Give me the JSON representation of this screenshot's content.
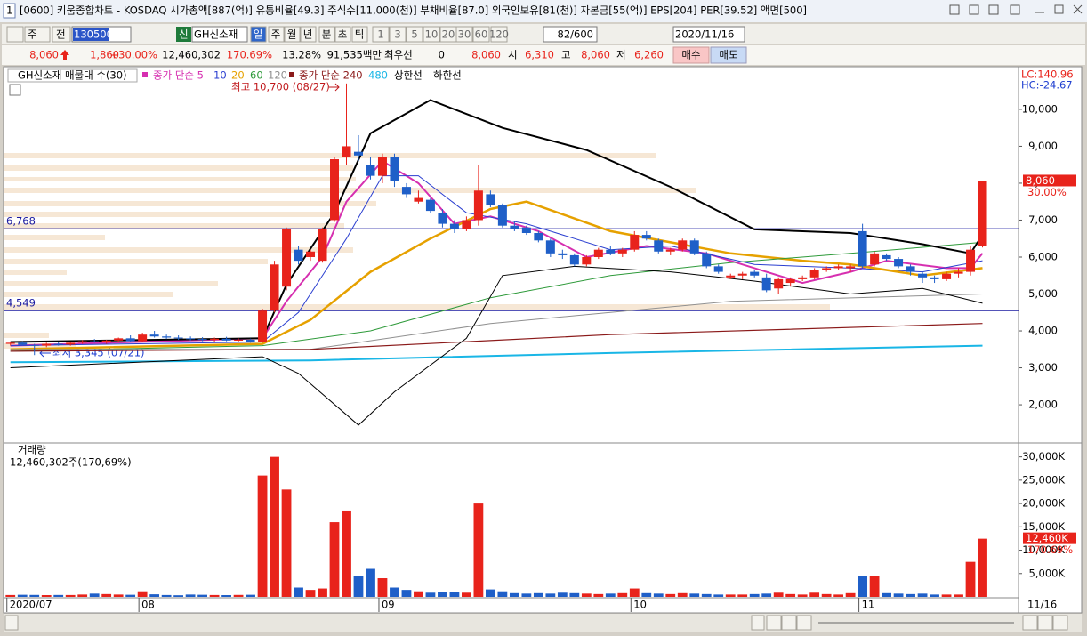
{
  "window": {
    "number": "1",
    "title": "[0600] 키움종합차트 - KOSDAQ 시가총액[887(억)] 유통비율[49.3] 주식수[11,000(천)] 부채비율[87.0] 외국인보유[81(천)] 자본금[55(억)] EPS[204] PER[39.52] 액면[500]"
  },
  "toolbar": {
    "market": "주",
    "mode": "전",
    "code": "130500",
    "badge": "신",
    "name": "GH신소재",
    "periods": [
      "일",
      "주",
      "월",
      "년",
      "분",
      "초",
      "틱"
    ],
    "intervals": [
      "1",
      "3",
      "5",
      "10",
      "20",
      "30",
      "60",
      "120"
    ],
    "count": "82/600",
    "date": "2020/11/16"
  },
  "quote": {
    "price": "8,060",
    "change": "1,860",
    "rate": "+30.00%",
    "volume": "12,460,302",
    "volume_rate": "170.69%",
    "turnover": "13.28%",
    "amount": "91,535백만",
    "best_label": "최우선",
    "best": "0",
    "best_price": "8,060",
    "open_label": "시",
    "open": "6,310",
    "high_label": "고",
    "high": "8,060",
    "low_label": "저",
    "low": "6,260",
    "buy": "매수",
    "sell": "매도"
  },
  "chart_data": [
    {
      "type": "candlestick",
      "title": "GH신소재 매물대 수(30)",
      "lc": "LC:140.96",
      "hc": "HC:-24.67",
      "up_color": "#e8231b",
      "down_color": "#1f5fc8",
      "xlim": [
        -0.5,
        84
      ],
      "xticks": [
        {
          "value": 0,
          "label": "2020/07"
        },
        {
          "value": 11,
          "label": "08"
        },
        {
          "value": 31,
          "label": "09"
        },
        {
          "value": 52,
          "label": "10"
        },
        {
          "value": 71,
          "label": "11"
        }
      ],
      "cursor_label": "11/16",
      "ylim": [
        990,
        11130
      ],
      "yticks": [
        {
          "value": 2000,
          "label": "2,000"
        },
        {
          "value": 3000,
          "label": "3,000"
        },
        {
          "value": 4000,
          "label": "4,000"
        },
        {
          "value": 5000,
          "label": "5,000"
        },
        {
          "value": 6000,
          "label": "6,000"
        },
        {
          "value": 7000,
          "label": "7,000"
        },
        {
          "value": 8000,
          "label": "8,000"
        },
        {
          "value": 9000,
          "label": "9,000"
        },
        {
          "value": 10000,
          "label": "10,000"
        }
      ],
      "open": [
        3650,
        3680,
        3620,
        3600,
        3650,
        3630,
        3680,
        3720,
        3700,
        3740,
        3800,
        3720,
        3900,
        3850,
        3820,
        3800,
        3780,
        3760,
        3790,
        3740,
        3760,
        3700,
        4550,
        5200,
        6200,
        6000,
        5900,
        7000,
        8700,
        8850,
        8500,
        8200,
        8700,
        7900,
        7500,
        7550,
        7200,
        6900,
        6750,
        7000,
        7700,
        7400,
        6850,
        6800,
        6650,
        6450,
        6100,
        6050,
        5800,
        6000,
        6200,
        6100,
        6200,
        6600,
        6450,
        6150,
        6200,
        6450,
        6100,
        5750,
        5450,
        5500,
        5600,
        5450,
        5150,
        5300,
        5400,
        5450,
        5650,
        5700,
        5700,
        6700,
        5800,
        6050,
        5950,
        5750,
        5550,
        5450,
        5400,
        5550,
        5600,
        6310
      ],
      "high": [
        3700,
        3720,
        3650,
        3680,
        3700,
        3700,
        3750,
        3780,
        3760,
        3820,
        3880,
        3950,
        4000,
        3900,
        3880,
        3850,
        3830,
        3820,
        3840,
        3800,
        3790,
        4600,
        5900,
        6800,
        6300,
        6200,
        6800,
        8700,
        10700,
        9300,
        8700,
        8800,
        8800,
        8000,
        7800,
        7600,
        7300,
        7000,
        7100,
        8500,
        7800,
        7450,
        6950,
        6850,
        6700,
        6500,
        6200,
        6100,
        6050,
        6250,
        6300,
        6250,
        6700,
        6700,
        6500,
        6250,
        6500,
        6500,
        6150,
        5800,
        5550,
        5600,
        5650,
        5550,
        5450,
        5450,
        5500,
        5700,
        5750,
        5800,
        5800,
        6900,
        6150,
        6100,
        6000,
        5800,
        5600,
        5500,
        5600,
        5700,
        6300,
        8060
      ],
      "low": [
        3600,
        3600,
        3345,
        3560,
        3600,
        3600,
        3650,
        3680,
        3650,
        3700,
        3700,
        3700,
        3820,
        3780,
        3760,
        3740,
        3720,
        3700,
        3720,
        3700,
        3680,
        3680,
        4500,
        5100,
        5800,
        5900,
        5850,
        6950,
        8500,
        8600,
        8100,
        8000,
        7900,
        7600,
        7450,
        7200,
        6800,
        6650,
        6700,
        6850,
        7350,
        6800,
        6700,
        6600,
        6400,
        6000,
        5950,
        5750,
        5750,
        5950,
        6050,
        6000,
        6150,
        6450,
        6100,
        6050,
        6150,
        6050,
        5700,
        5550,
        5400,
        5400,
        5450,
        5050,
        5000,
        5200,
        5350,
        5400,
        5600,
        5650,
        5600,
        5700,
        5750,
        5900,
        5700,
        5500,
        5300,
        5300,
        5350,
        5450,
        5500,
        6260
      ],
      "close": [
        3680,
        3620,
        3600,
        3650,
        3630,
        3680,
        3720,
        3700,
        3740,
        3800,
        3720,
        3900,
        3850,
        3820,
        3800,
        3780,
        3760,
        3790,
        3740,
        3760,
        3700,
        4550,
        5800,
        6750,
        5900,
        6150,
        6750,
        8650,
        9000,
        8750,
        8200,
        8700,
        8050,
        7700,
        7600,
        7250,
        6900,
        6750,
        7000,
        7800,
        7400,
        6850,
        6750,
        6650,
        6450,
        6100,
        6050,
        5800,
        6000,
        6200,
        6100,
        6200,
        6600,
        6500,
        6150,
        6200,
        6450,
        6100,
        5750,
        5600,
        5500,
        5550,
        5500,
        5100,
        5400,
        5400,
        5450,
        5650,
        5700,
        5750,
        5750,
        5750,
        6100,
        5950,
        5750,
        5600,
        5450,
        5400,
        5550,
        5600,
        6200,
        8060
      ],
      "last_label": "8,060",
      "last_rate": "30.00%",
      "lines": [
        {
          "name": "종가 단순 5",
          "color": "#d62fb0",
          "width": 2,
          "x": [
            0,
            21,
            23,
            26,
            28,
            31,
            34,
            37,
            40,
            44,
            48,
            53,
            58,
            62,
            66,
            70,
            73,
            78,
            80,
            81
          ],
          "values": [
            3600,
            3800,
            4800,
            6000,
            7500,
            8600,
            8000,
            6900,
            7100,
            6700,
            6000,
            6300,
            6100,
            5700,
            5300,
            5600,
            5900,
            5700,
            5700,
            6100
          ]
        },
        {
          "name": "10",
          "color": "#2b3fd0",
          "width": 1,
          "x": [
            0,
            21,
            24,
            28,
            31,
            34,
            38,
            43,
            50,
            55,
            62,
            70,
            76,
            81
          ],
          "values": [
            3600,
            3700,
            4500,
            6500,
            8200,
            8200,
            7200,
            6900,
            6200,
            6300,
            5800,
            5700,
            5600,
            5900
          ]
        },
        {
          "name": "20",
          "color": "#e6a100",
          "width": 2.5,
          "x": [
            0,
            21,
            25,
            30,
            35,
            40,
            43,
            50,
            60,
            66,
            70,
            76,
            81
          ],
          "values": [
            3500,
            3650,
            4300,
            5600,
            6500,
            7300,
            7500,
            6700,
            6100,
            5900,
            5800,
            5500,
            5700
          ]
        },
        {
          "name": "60",
          "color": "#2e9a3a",
          "width": 1,
          "x": [
            0,
            21,
            30,
            40,
            50,
            60,
            70,
            81
          ],
          "values": [
            3450,
            3600,
            4000,
            4900,
            5500,
            5850,
            6100,
            6400
          ]
        },
        {
          "name": "120",
          "color": "#909090",
          "width": 1,
          "x": [
            0,
            25,
            40,
            60,
            81
          ],
          "values": [
            3500,
            3500,
            4200,
            4800,
            5000
          ]
        },
        {
          "name": "종가 단순 240",
          "color": "#8b1a1a",
          "width": 1.2,
          "x": [
            0,
            25,
            50,
            81
          ],
          "values": [
            3450,
            3500,
            3900,
            4200
          ]
        },
        {
          "name": "480",
          "color": "#19b6e6",
          "width": 2,
          "x": [
            0,
            25,
            50,
            81
          ],
          "values": [
            3150,
            3200,
            3400,
            3600
          ]
        },
        {
          "name": "상한선",
          "color": "#000000",
          "width": 2,
          "x": [
            0,
            21,
            23,
            27,
            30,
            35,
            41,
            48,
            55,
            62,
            70,
            76,
            80,
            81
          ],
          "values": [
            3700,
            3800,
            5250,
            7200,
            9350,
            10250,
            9500,
            8900,
            7900,
            6750,
            6650,
            6350,
            6100,
            6600
          ]
        },
        {
          "name": "하한선",
          "color": "#000000",
          "width": 1,
          "x": [
            0,
            21,
            24,
            29,
            32,
            38,
            41,
            47,
            55,
            62,
            70,
            76,
            81
          ],
          "values": [
            3000,
            3300,
            2850,
            1450,
            2350,
            3800,
            5500,
            5750,
            5600,
            5350,
            5000,
            5150,
            4750
          ]
        }
      ],
      "hlines": [
        {
          "value": 6768,
          "label": "6,768"
        },
        {
          "value": 4549,
          "label": "4,549"
        }
      ],
      "hline_color": "#1a1aa0",
      "annotations": [
        "최고 10,700 (08/27)",
        "최저 3,345 (07/21)"
      ]
    },
    {
      "type": "bar",
      "title": "거래량",
      "subtitle": "12,460,302주(170,69%)",
      "ylim": [
        0,
        32600
      ],
      "yticks": [
        {
          "value": 5000,
          "label": "5,000K"
        },
        {
          "value": 10000,
          "label": "10,000K"
        },
        {
          "value": 15000,
          "label": "15,000K"
        },
        {
          "value": 20000,
          "label": "20,000K"
        },
        {
          "value": 25000,
          "label": "25,000K"
        },
        {
          "value": 30000,
          "label": "30,000K"
        }
      ],
      "values": [
        400,
        450,
        420,
        380,
        410,
        400,
        500,
        700,
        600,
        500,
        450,
        1200,
        550,
        400,
        350,
        500,
        450,
        400,
        380,
        420,
        450,
        26000,
        30000,
        23000,
        2000,
        1500,
        1800,
        16000,
        18500,
        4500,
        6000,
        4000,
        2000,
        1500,
        1200,
        900,
        1000,
        1100,
        900,
        20000,
        1600,
        1200,
        800,
        700,
        800,
        700,
        900,
        800,
        700,
        600,
        700,
        800,
        1800,
        800,
        700,
        600,
        800,
        700,
        600,
        500,
        500,
        500,
        600,
        700,
        900,
        600,
        500,
        900,
        600,
        500,
        800,
        4500,
        4500,
        800,
        700,
        600,
        700,
        500,
        500,
        500,
        7500,
        12460
      ],
      "last_label": "12,460K",
      "last_rate": "170.69%"
    }
  ]
}
